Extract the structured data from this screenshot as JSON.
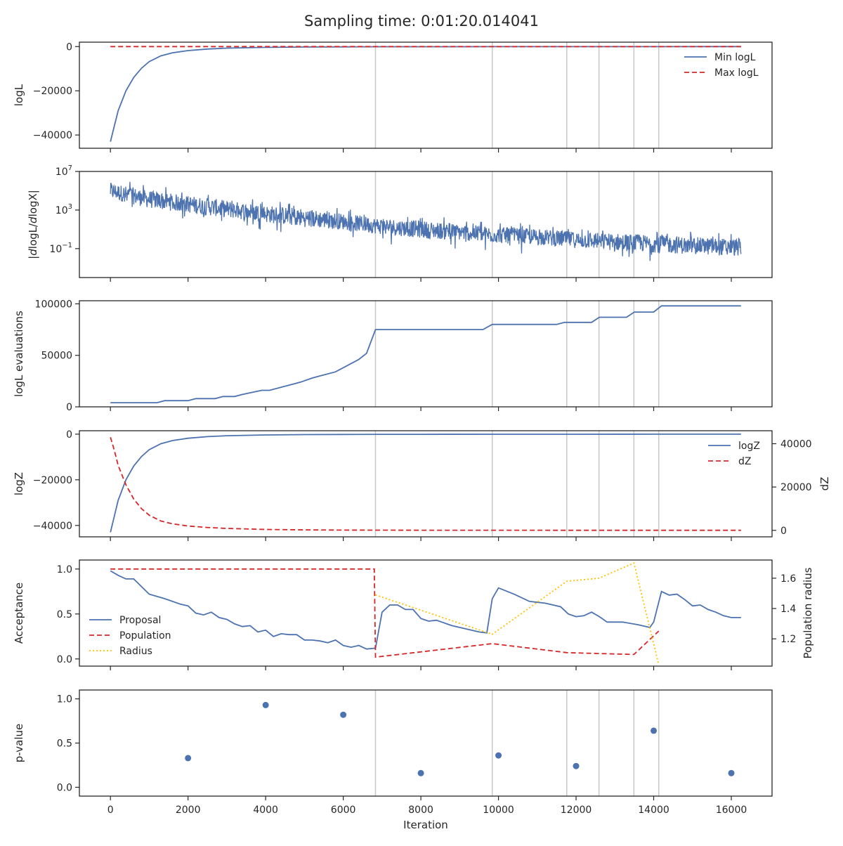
{
  "figure": {
    "title": "Sampling time: 0:01:20.014041",
    "xlabel": "Iteration",
    "xticks": [
      "0",
      "2000",
      "4000",
      "6000",
      "8000",
      "10000",
      "12000",
      "14000",
      "16000"
    ]
  },
  "colors": {
    "blue": "#4c72b0",
    "red": "#d62728",
    "yellow": "#ffc000",
    "vline": "#c8c8c8",
    "axis": "#262626"
  },
  "chart_data": [
    {
      "type": "line",
      "ylabel": "logL",
      "xlim": [
        -800,
        17050
      ],
      "ylim": [
        -46000,
        2000
      ],
      "yticks": [
        0,
        -20000,
        -40000
      ],
      "ytick_labels": [
        "0",
        "−20000",
        "−40000"
      ],
      "vlines": [
        6830,
        9840,
        11760,
        12590,
        13490,
        14130
      ],
      "legend": [
        "Min logL",
        "Max logL"
      ],
      "legend_position": "top-right",
      "series": [
        {
          "name": "Min logL",
          "style": "solid",
          "color": "#4c72b0",
          "x": [
            0,
            100,
            200,
            400,
            600,
            800,
            1000,
            1300,
            1600,
            2000,
            2500,
            3000,
            4000,
            5000,
            6000,
            7000,
            8000,
            10000,
            12000,
            14000,
            16250
          ],
          "y": [
            -43000,
            -36000,
            -29000,
            -20000,
            -14000,
            -9800,
            -6800,
            -4200,
            -2800,
            -1800,
            -1100,
            -700,
            -350,
            -200,
            -120,
            -80,
            -60,
            -40,
            -30,
            -20,
            -10
          ]
        },
        {
          "name": "Max logL",
          "style": "dashed",
          "color": "#d62728",
          "x": [
            0,
            16250
          ],
          "y": [
            0,
            0
          ]
        }
      ]
    },
    {
      "type": "line",
      "ylabel": "|dlogL/dlogX|",
      "scale": "log",
      "xlim": [
        -800,
        17050
      ],
      "ylim_log10": [
        -4.0,
        7.0
      ],
      "yticks_log10": [
        7,
        3,
        -1
      ],
      "ytick_labels": [
        [
          "10",
          "7"
        ],
        [
          "10",
          "3"
        ],
        [
          "10",
          "−1"
        ]
      ],
      "vlines": [
        6830,
        9840,
        11760,
        12590,
        13490,
        14130
      ],
      "series": [
        {
          "name": "",
          "style": "noisy-band",
          "color": "#4c72b0",
          "x": [
            0,
            1000,
            2000,
            3000,
            4000,
            5000,
            6000,
            7000,
            8000,
            9000,
            10000,
            11000,
            12000,
            13000,
            14000,
            15000,
            16250
          ],
          "upper_log10": [
            6.4,
            5.6,
            5.1,
            4.6,
            4.1,
            3.8,
            3.2,
            2.7,
            2.5,
            2.1,
            1.8,
            1.6,
            1.3,
            1.2,
            1.0,
            0.8,
            0.6
          ],
          "center_log10": [
            5.0,
            4.1,
            3.6,
            3.1,
            2.6,
            2.2,
            1.8,
            1.3,
            1.0,
            0.7,
            0.4,
            0.2,
            -0.1,
            -0.3,
            -0.5,
            -0.7,
            -0.9
          ],
          "lower_log10": [
            3.2,
            2.4,
            1.8,
            1.2,
            0.8,
            0.4,
            0.0,
            -0.5,
            -0.9,
            -1.2,
            -1.5,
            -1.7,
            -2.0,
            -2.3,
            -2.5,
            -2.7,
            -2.9
          ]
        }
      ]
    },
    {
      "type": "line",
      "ylabel": "logL evaluations",
      "xlim": [
        -800,
        17050
      ],
      "ylim": [
        0,
        103000
      ],
      "yticks": [
        0,
        50000,
        100000
      ],
      "ytick_labels": [
        "0",
        "50000",
        "100000"
      ],
      "vlines": [
        6830,
        9840,
        11760,
        12590,
        13490,
        14130
      ],
      "series": [
        {
          "name": "",
          "style": "solid",
          "color": "#4c72b0",
          "x": [
            0,
            1200,
            1400,
            2000,
            2200,
            2700,
            2900,
            3200,
            3400,
            3900,
            4100,
            4700,
            4900,
            5200,
            5400,
            5800,
            6200,
            6400,
            6600,
            6830,
            9600,
            9840,
            11500,
            11700,
            12400,
            12600,
            13300,
            13500,
            14000,
            14200,
            16250
          ],
          "y": [
            4000,
            4000,
            6000,
            6000,
            8000,
            8000,
            10000,
            10000,
            12000,
            16000,
            16000,
            22000,
            24000,
            28000,
            30000,
            34000,
            42000,
            46000,
            52000,
            75000,
            75000,
            80000,
            80000,
            82000,
            82000,
            87000,
            87000,
            92000,
            92000,
            98000,
            98000
          ]
        }
      ]
    },
    {
      "type": "line",
      "ylabel": "logZ",
      "ylabel_right": "dZ",
      "xlim": [
        -800,
        17050
      ],
      "ylim": [
        -45000,
        1500
      ],
      "yticks": [
        0,
        -20000,
        -40000
      ],
      "ytick_labels": [
        "0",
        "−20000",
        "−40000"
      ],
      "ylim_right": [
        -3000,
        46000
      ],
      "yticks_right": [
        40000,
        20000,
        0
      ],
      "ytick_labels_right": [
        "40000",
        "20000",
        "0"
      ],
      "vlines": [
        6830,
        9840,
        11760,
        12590,
        13490,
        14130
      ],
      "legend": [
        "logZ",
        "dZ"
      ],
      "legend_position": "top-right",
      "series": [
        {
          "name": "logZ",
          "style": "solid",
          "color": "#4c72b0",
          "axis": "left",
          "x": [
            0,
            100,
            200,
            400,
            600,
            800,
            1000,
            1300,
            1600,
            2000,
            2500,
            3000,
            4000,
            5000,
            6000,
            7000,
            8000,
            10000,
            12000,
            14000,
            16250
          ],
          "y": [
            -43000,
            -36000,
            -29000,
            -20000,
            -14000,
            -9800,
            -6800,
            -4200,
            -2800,
            -1800,
            -1100,
            -700,
            -350,
            -200,
            -120,
            -80,
            -60,
            -40,
            -30,
            -20,
            -10
          ]
        },
        {
          "name": "dZ",
          "style": "dashed",
          "color": "#d62728",
          "axis": "right",
          "x": [
            0,
            100,
            200,
            400,
            600,
            800,
            1000,
            1300,
            1600,
            2000,
            2500,
            3000,
            4000,
            5000,
            6000,
            7000,
            8000,
            10000,
            12000,
            14000,
            16250
          ],
          "y": [
            43000,
            37000,
            30000,
            21000,
            14500,
            10000,
            7000,
            4300,
            3000,
            2000,
            1300,
            900,
            400,
            200,
            120,
            80,
            60,
            40,
            30,
            20,
            10
          ]
        }
      ]
    },
    {
      "type": "line",
      "ylabel": "Acceptance",
      "ylabel_right": "Population radius",
      "xlim": [
        -800,
        17050
      ],
      "ylim": [
        -0.08,
        1.1
      ],
      "yticks": [
        1.0,
        0.5,
        0.0
      ],
      "ytick_labels": [
        "1.0",
        "0.5",
        "0.0"
      ],
      "ylim_right": [
        1.02,
        1.72
      ],
      "yticks_right": [
        1.6,
        1.4,
        1.2
      ],
      "ytick_labels_right": [
        "1.6",
        "1.4",
        "1.2"
      ],
      "vlines": [],
      "legend": [
        "Proposal",
        "Population",
        "Radius"
      ],
      "legend_position": "lower-left",
      "series": [
        {
          "name": "Proposal",
          "style": "solid",
          "color": "#4c72b0",
          "axis": "left",
          "x": [
            0,
            200,
            400,
            600,
            1000,
            1400,
            1800,
            2000,
            2200,
            2400,
            2600,
            2800,
            3000,
            3200,
            3400,
            3600,
            3800,
            4000,
            4200,
            4400,
            4600,
            4800,
            5000,
            5200,
            5400,
            5600,
            5800,
            6000,
            6200,
            6400,
            6600,
            6830,
            7000,
            7200,
            7400,
            7600,
            7800,
            8000,
            8200,
            8400,
            8800,
            9200,
            9500,
            9700,
            9840,
            10000,
            10400,
            10800,
            11200,
            11600,
            11800,
            12000,
            12200,
            12400,
            12600,
            12800,
            13200,
            13600,
            13900,
            14000,
            14200,
            14400,
            14600,
            14800,
            15000,
            15200,
            15400,
            15600,
            15800,
            16000,
            16250
          ],
          "y": [
            0.98,
            0.93,
            0.89,
            0.89,
            0.72,
            0.67,
            0.61,
            0.59,
            0.51,
            0.49,
            0.52,
            0.46,
            0.44,
            0.39,
            0.36,
            0.37,
            0.3,
            0.32,
            0.25,
            0.28,
            0.27,
            0.27,
            0.21,
            0.21,
            0.2,
            0.18,
            0.21,
            0.15,
            0.13,
            0.15,
            0.11,
            0.12,
            0.52,
            0.6,
            0.6,
            0.55,
            0.55,
            0.45,
            0.42,
            0.43,
            0.37,
            0.33,
            0.3,
            0.29,
            0.67,
            0.79,
            0.72,
            0.64,
            0.62,
            0.58,
            0.5,
            0.47,
            0.48,
            0.52,
            0.47,
            0.41,
            0.41,
            0.38,
            0.35,
            0.41,
            0.75,
            0.71,
            0.72,
            0.66,
            0.59,
            0.6,
            0.55,
            0.52,
            0.48,
            0.46,
            0.46
          ]
        },
        {
          "name": "Population",
          "style": "dashed",
          "color": "#d62728",
          "axis": "left",
          "x": [
            0,
            6800,
            6830,
            9840,
            11760,
            12590,
            13490,
            14130
          ],
          "y": [
            1.0,
            1.0,
            0.02,
            0.17,
            0.07,
            0.06,
            0.05,
            0.31
          ]
        },
        {
          "name": "Radius",
          "style": "dotted",
          "color": "#ffc000",
          "axis": "right",
          "x": [
            6830,
            9840,
            11760,
            12590,
            13490,
            14130
          ],
          "y": [
            1.49,
            1.23,
            1.58,
            1.6,
            1.7,
            1.03
          ]
        }
      ]
    },
    {
      "type": "scatter",
      "ylabel": "p-value",
      "xlim": [
        -800,
        17050
      ],
      "ylim": [
        -0.1,
        1.1
      ],
      "yticks": [
        1.0,
        0.5,
        0.0
      ],
      "ytick_labels": [
        "1.0",
        "0.5",
        "0.0"
      ],
      "vlines": [
        6830,
        9840,
        11760,
        12590,
        13490,
        14130
      ],
      "series": [
        {
          "name": "",
          "style": "points",
          "color": "#4c72b0",
          "x": [
            2000,
            4000,
            6000,
            8000,
            10000,
            12000,
            14000,
            16000
          ],
          "y": [
            0.33,
            0.93,
            0.82,
            0.16,
            0.36,
            0.24,
            0.64,
            0.16
          ]
        }
      ]
    }
  ]
}
